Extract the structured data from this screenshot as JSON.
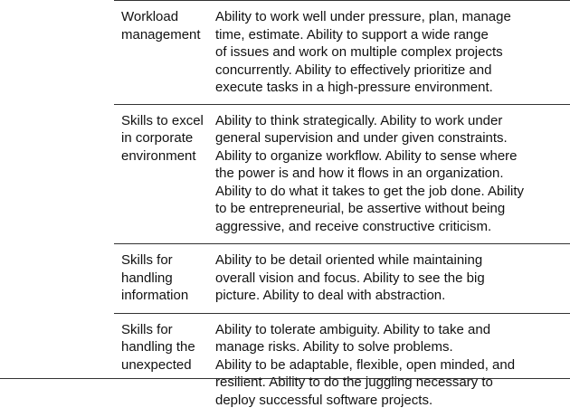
{
  "rows": [
    {
      "label_lines": [
        "Workload",
        "management"
      ],
      "desc_lines": [
        "Ability to work well under pressure, plan, manage",
        "time, estimate. Ability to support a wide range",
        "of issues and work on multiple complex projects",
        "concurrently. Ability to effectively prioritize and",
        "execute tasks in a high-pressure environment."
      ]
    },
    {
      "label_lines": [
        "Skills to excel",
        "in corporate",
        "environment"
      ],
      "desc_lines": [
        "Ability to think strategically. Ability to work under",
        "general supervision and under given constraints.",
        "Ability to organize workflow. Ability to sense where",
        "the power is and how it flows in an organization.",
        "Ability to do what it takes to get the job done. Ability",
        "to be entrepreneurial, be assertive without being",
        "aggressive, and receive constructive criticism."
      ]
    },
    {
      "label_lines": [
        "Skills for",
        "handling",
        "information"
      ],
      "desc_lines": [
        "Ability to be detail oriented while maintaining",
        "overall vision and focus. Ability to see the big",
        "picture. Ability to deal with abstraction."
      ]
    },
    {
      "label_lines": [
        "Skills for",
        "handling the",
        "unexpected"
      ],
      "desc_lines": [
        "Ability to tolerate ambiguity. Ability to take and",
        "manage risks. Ability to solve problems.",
        "Ability to be adaptable, flexible, open minded, and",
        "resilient. Ability to do the juggling necessary to",
        "deploy successful software projects."
      ]
    }
  ]
}
